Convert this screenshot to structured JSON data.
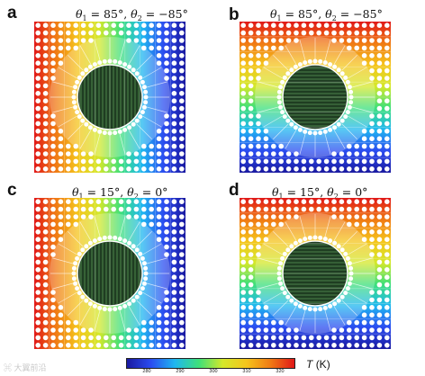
{
  "panels": [
    {
      "letter": "a",
      "theta1": "85°",
      "theta2": "−85°",
      "gradient": "horizontal"
    },
    {
      "letter": "b",
      "theta1": "85°",
      "theta2": "−85°",
      "gradient": "vertical"
    },
    {
      "letter": "c",
      "theta1": "15°",
      "theta2": "0°",
      "gradient": "horizontal"
    },
    {
      "letter": "d",
      "theta1": "15°",
      "theta2": "0°",
      "gradient": "vertical"
    }
  ],
  "colorbar": {
    "ticks": [
      "280",
      "290",
      "300",
      "310",
      "320"
    ],
    "label": "T",
    "unit": "(K)",
    "colors": [
      "#1a1aa0",
      "#2b4cf0",
      "#1fb7f0",
      "#3ee07a",
      "#d4e82a",
      "#f5c41c",
      "#f07a14",
      "#e01818"
    ]
  },
  "watermark": "大翼前沿"
}
